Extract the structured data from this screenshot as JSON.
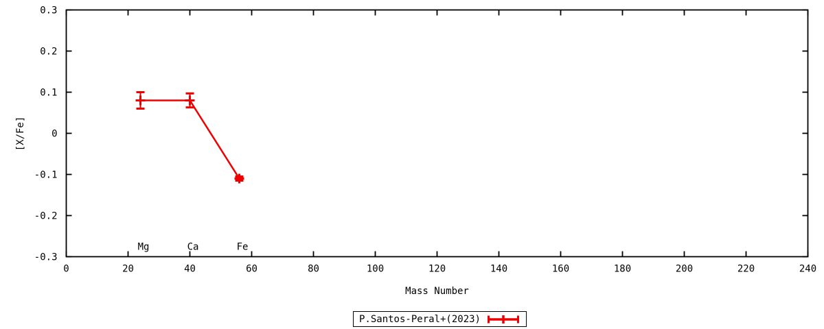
{
  "figure": {
    "background": "#ffffff",
    "axis_color": "#000000"
  },
  "chart_data": {
    "type": "line",
    "title": "",
    "xlabel": "Mass Number",
    "ylabel": "[X/Fe]",
    "xlim": [
      0,
      240
    ],
    "ylim": [
      -0.3,
      0.3
    ],
    "xticks": [
      0,
      20,
      40,
      60,
      80,
      100,
      120,
      140,
      160,
      180,
      200,
      220,
      240
    ],
    "ytick_values": [
      -0.3,
      -0.2,
      -0.1,
      0,
      0.1,
      0.2,
      0.3
    ],
    "ytick_labels": [
      "-0.3",
      "-0.2",
      "-0.1",
      "0",
      "0.1",
      "0.2",
      "0.3"
    ],
    "grid": false,
    "ticks_mirrored": true,
    "legend": {
      "position": "bottom-center-outside",
      "boxed": true,
      "entries": [
        {
          "label": "P.Santos-Peral+(2023)",
          "color": "#ee0000",
          "style": "errorbar"
        }
      ]
    },
    "series": [
      {
        "name": "P.Santos-Peral+(2023)",
        "color": "#ee0000",
        "marker": "plus",
        "line": "solid",
        "points": [
          {
            "element": "Mg",
            "x": 24,
            "y": 0.08,
            "yerr": 0.02
          },
          {
            "element": "Ca",
            "x": 40,
            "y": 0.08,
            "yerr": 0.017
          },
          {
            "element": "Fe",
            "x": 56,
            "y": -0.11,
            "yerr": 0.005
          }
        ]
      }
    ],
    "annotations": [
      {
        "text": "Mg",
        "x": 25,
        "y": -0.275
      },
      {
        "text": "Ca",
        "x": 41,
        "y": -0.275
      },
      {
        "text": "Fe",
        "x": 57,
        "y": -0.275
      }
    ]
  }
}
